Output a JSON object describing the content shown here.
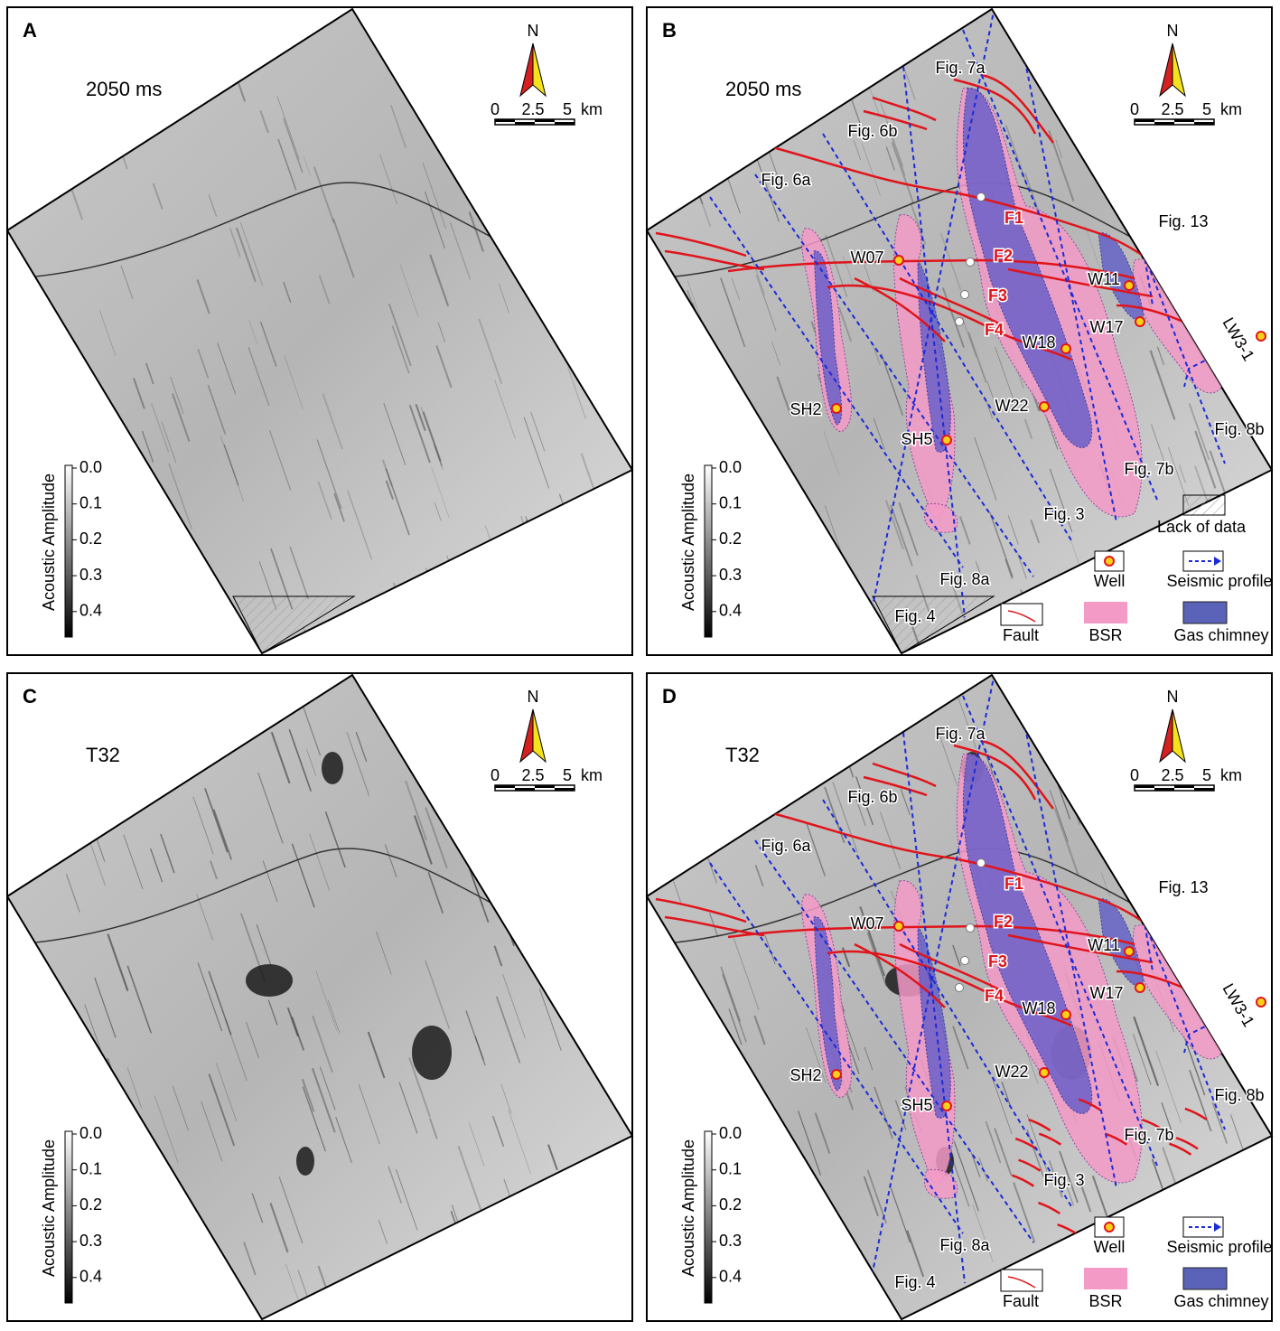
{
  "panels": [
    {
      "label": "A",
      "horizon": "2050 ms"
    },
    {
      "label": "B",
      "horizon": "2050 ms"
    },
    {
      "label": "C",
      "horizon": "T32"
    },
    {
      "label": "D",
      "horizon": "T32"
    }
  ],
  "north": "N",
  "scale": {
    "ticks": [
      "0",
      "2.5",
      "5"
    ],
    "unit": "km"
  },
  "colorbar": {
    "title": "Acoustic Amplitude",
    "ticks": [
      "0.0",
      "0.1",
      "0.2",
      "0.3",
      "0.4"
    ]
  },
  "interpretation": {
    "faults": [
      "F1",
      "F2",
      "F3",
      "F4"
    ],
    "wells": [
      "W07",
      "W11",
      "W17",
      "W18",
      "W22",
      "SH2",
      "SH5",
      "LW3-1"
    ],
    "profiles": [
      "Fig. 7a",
      "Fig. 6b",
      "Fig. 6a",
      "Fig. 13",
      "Fig. 8b",
      "Fig. 7b",
      "Fig. 3",
      "Fig. 8a",
      "Fig. 4"
    ]
  },
  "legend": {
    "well": "Well",
    "profile": "Seismic profile",
    "fault": "Fault",
    "bsr": "BSR",
    "gas_chimney": "Gas chimney",
    "lack_of_data": "Lack of data"
  }
}
